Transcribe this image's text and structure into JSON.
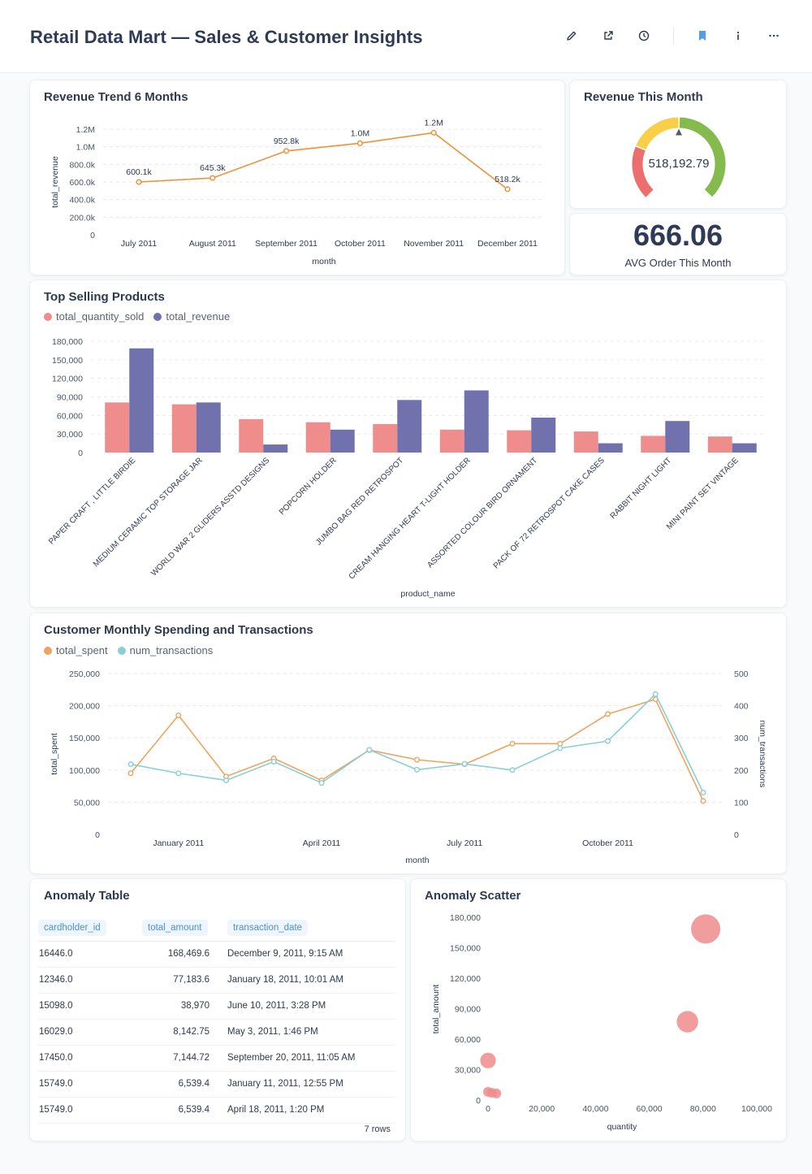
{
  "header": {
    "title": "Retail Data Mart — Sales & Customer Insights",
    "icons": [
      "pencil-icon",
      "share-icon",
      "clock-icon",
      "bookmark-icon",
      "info-icon",
      "more-icon"
    ],
    "bookmark_color": "#509ee3"
  },
  "revenue_trend": {
    "title": "Revenue Trend 6 Months",
    "color": "#f0913a",
    "chart_data": {
      "type": "line",
      "categories": [
        "July 2011",
        "August 2011",
        "September 2011",
        "October 2011",
        "November 2011",
        "December 2011"
      ],
      "values": [
        600.1,
        645.3,
        952.8,
        1040,
        1160,
        518.2
      ],
      "data_labels": [
        "600.1k",
        "645.3k",
        "952.8k",
        "1.0M",
        "1.2M",
        "518.2k"
      ],
      "xlabel": "month",
      "ylabel": "total_revenue",
      "ylim": [
        0,
        1200
      ],
      "yticks": [
        0,
        200,
        400,
        600,
        800,
        1000,
        1200
      ],
      "ytick_labels": [
        "0",
        "200.0k",
        "400.0k",
        "600.0k",
        "800.0k",
        "1.0M",
        "1.2M"
      ]
    }
  },
  "revenue_month": {
    "title": "Revenue This Month",
    "value_label": "518,192.79",
    "colors": [
      "#ed6e6e",
      "#f9cf48",
      "#84bb4c"
    ],
    "pointer_fraction": 0.5
  },
  "avg_order": {
    "value": "666.06",
    "label": "AVG Order This Month"
  },
  "top_products": {
    "title": "Top Selling Products",
    "chart_data": {
      "type": "bar",
      "categories": [
        "PAPER CRAFT , LITTLE BIRDIE",
        "MEDIUM CERAMIC TOP STORAGE JAR",
        "WORLD WAR 2 GLIDERS ASSTD DESIGNS",
        "POPCORN HOLDER",
        "JUMBO BAG RED RETROSPOT",
        "CREAM HANGING HEART T-LIGHT HOLDER",
        "ASSORTED COLOUR BIRD ORNAMENT",
        "PACK OF 72 RETROSPOT CAKE CASES",
        "RABBIT NIGHT LIGHT",
        "MINI PAINT SET VINTAGE"
      ],
      "series": [
        {
          "name": "total_quantity_sold",
          "color": "#ef8c8c",
          "values": [
            81000,
            78000,
            54000,
            49000,
            46000,
            37000,
            36000,
            34000,
            27000,
            26000
          ]
        },
        {
          "name": "total_revenue",
          "color": "#7172ad",
          "values": [
            168500,
            81000,
            13000,
            37000,
            85000,
            100500,
            56500,
            15000,
            51000,
            15000
          ]
        }
      ],
      "xlabel": "product_name",
      "ylabel": "",
      "ylim": [
        0,
        180000
      ],
      "yticks": [
        0,
        30000,
        60000,
        90000,
        120000,
        150000,
        180000
      ],
      "ytick_labels": [
        "0",
        "30,000",
        "60,000",
        "90,000",
        "120,000",
        "150,000",
        "180,000"
      ]
    }
  },
  "customer_spending": {
    "title": "Customer Monthly Spending and Transactions",
    "chart_data": {
      "type": "line",
      "x": [
        "2010-12",
        "2011-01",
        "2011-02",
        "2011-03",
        "2011-04",
        "2011-05",
        "2011-06",
        "2011-07",
        "2011-08",
        "2011-09",
        "2011-10",
        "2011-11",
        "2011-12"
      ],
      "x_tick_labels": [
        "January 2011",
        "April 2011",
        "July 2011",
        "October 2011"
      ],
      "series": [
        {
          "name": "total_spent",
          "axis": "left",
          "color": "#f0a35e",
          "values": [
            95000,
            185000,
            90000,
            118000,
            84000,
            131000,
            116000,
            109000,
            141000,
            141000,
            187000,
            210000,
            52000
          ]
        },
        {
          "name": "num_transactions",
          "axis": "right",
          "color": "#88d0d3",
          "values": [
            218,
            190,
            168,
            226,
            160,
            263,
            201,
            219,
            200,
            268,
            290,
            436,
            130
          ]
        }
      ],
      "xlabel": "month",
      "ylabel": "total_spent",
      "y2label": "num_transactions",
      "ylim": [
        0,
        250000
      ],
      "y2lim": [
        0,
        500
      ],
      "yticks_labels": [
        "0",
        "50,000",
        "100,000",
        "150,000",
        "200,000",
        "250,000"
      ],
      "y2ticks_labels": [
        "0",
        "100",
        "200",
        "300",
        "400",
        "500"
      ]
    }
  },
  "anomaly_table": {
    "title": "Anomaly Table",
    "columns": [
      "cardholder_id",
      "total_amount",
      "transaction_date"
    ],
    "rows": [
      [
        "16446.0",
        "168,469.6",
        "December 9, 2011, 9:15 AM"
      ],
      [
        "12346.0",
        "77,183.6",
        "January 18, 2011, 10:01 AM"
      ],
      [
        "15098.0",
        "38,970",
        "June 10, 2011, 3:28 PM"
      ],
      [
        "16029.0",
        "8,142.75",
        "May 3, 2011, 1:46 PM"
      ],
      [
        "17450.0",
        "7,144.72",
        "September 20, 2011, 11:05 AM"
      ],
      [
        "15749.0",
        "6,539.4",
        "January 11, 2011, 12:55 PM"
      ],
      [
        "15749.0",
        "6,539.4",
        "April 18, 2011, 1:20 PM"
      ]
    ],
    "row_count": "7 rows"
  },
  "anomaly_scatter": {
    "title": "Anomaly Scatter",
    "chart_data": {
      "type": "scatter",
      "points": [
        {
          "x": 80995,
          "y": 168469.6,
          "size": 3
        },
        {
          "x": 74215,
          "y": 77183.6,
          "size": 2.2
        },
        {
          "x": 0,
          "y": 38970,
          "size": 1.6
        },
        {
          "x": 0,
          "y": 8142.75,
          "size": 1
        },
        {
          "x": 1400,
          "y": 7144.72,
          "size": 1
        },
        {
          "x": 3100,
          "y": 6539.4,
          "size": 1
        }
      ],
      "color": "#ef8c8c",
      "xlabel": "quantity",
      "ylabel": "total_amount",
      "xlim": [
        0,
        100000
      ],
      "ylim": [
        0,
        180000
      ],
      "xticks_labels": [
        "0",
        "20,000",
        "40,000",
        "60,000",
        "80,000",
        "100,000"
      ],
      "yticks_labels": [
        "0",
        "30,000",
        "60,000",
        "90,000",
        "120,000",
        "150,000",
        "180,000"
      ]
    }
  }
}
